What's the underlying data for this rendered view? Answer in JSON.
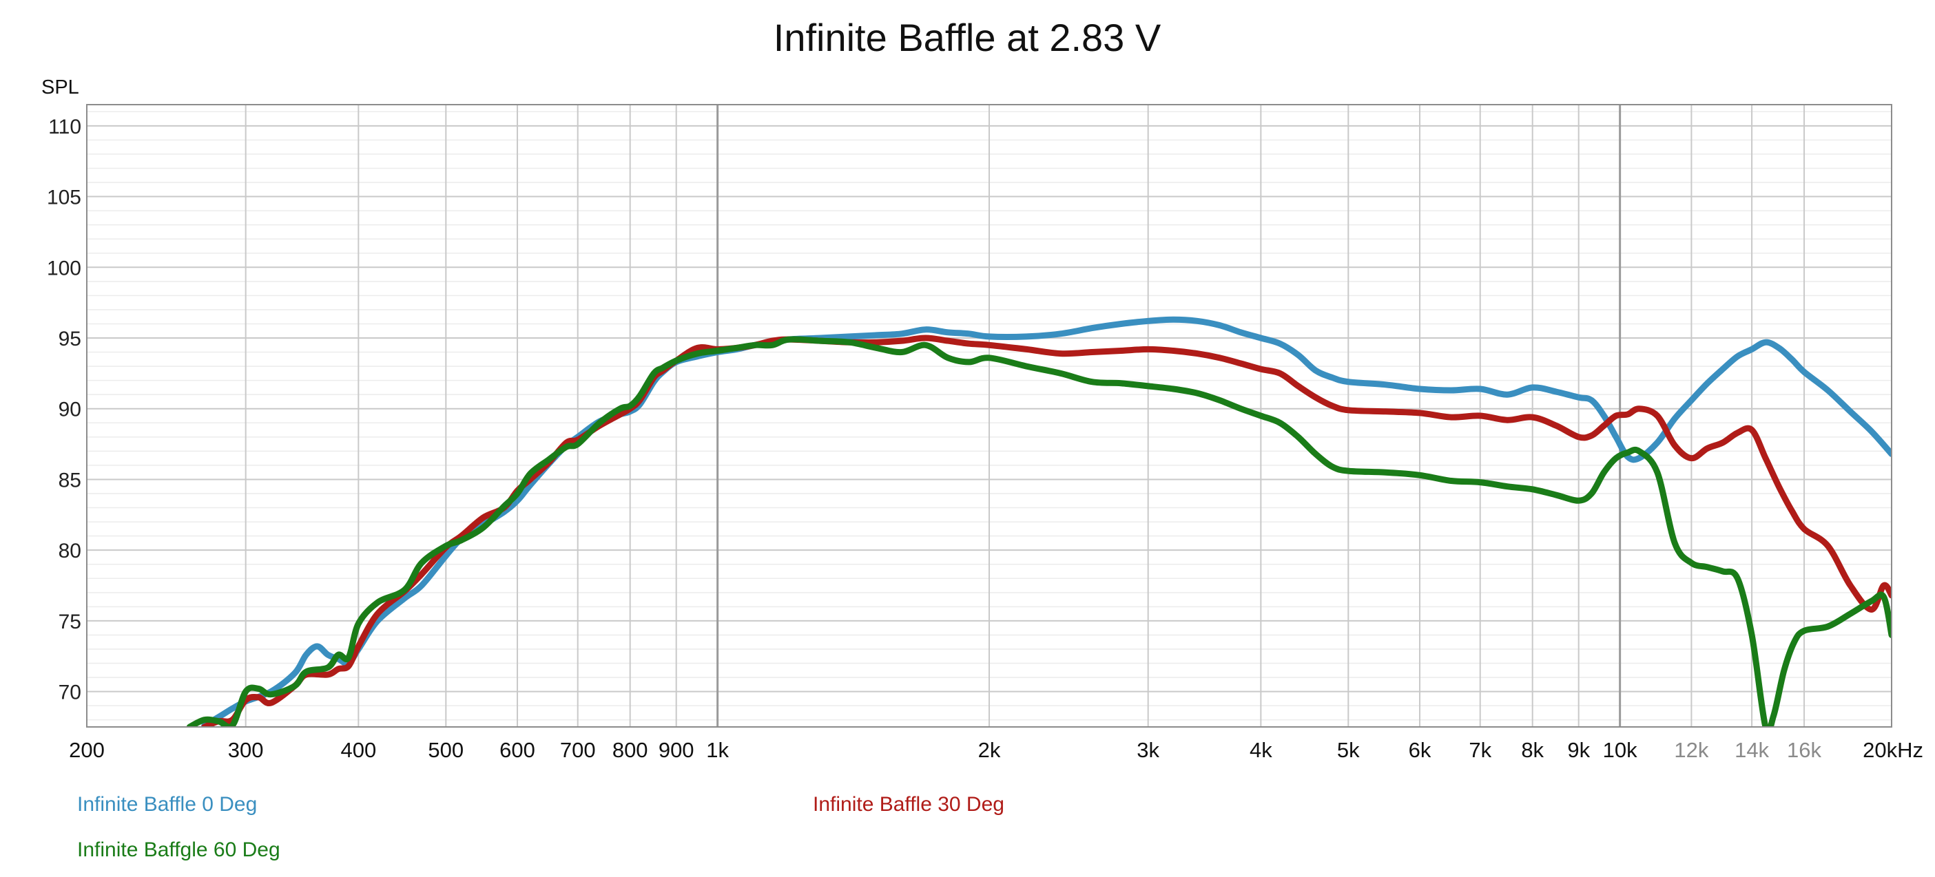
{
  "chart_data": {
    "type": "line",
    "title": "Infinite Baffle at 2.83 V",
    "ylabel": "SPL",
    "xlabel": "",
    "x_scale": "log",
    "xlim": [
      200,
      20000
    ],
    "ylim": [
      67.5,
      111.5
    ],
    "grid": true,
    "legend_placement": "bottom",
    "y_ticks": [
      "110",
      "105",
      "100",
      "95",
      "90",
      "85",
      "80",
      "75",
      "70"
    ],
    "x_ticks": [
      {
        "value": 200,
        "label": "200",
        "muted": false
      },
      {
        "value": 300,
        "label": "300",
        "muted": false
      },
      {
        "value": 400,
        "label": "400",
        "muted": false
      },
      {
        "value": 500,
        "label": "500",
        "muted": false
      },
      {
        "value": 600,
        "label": "600",
        "muted": false
      },
      {
        "value": 700,
        "label": "700",
        "muted": false
      },
      {
        "value": 800,
        "label": "800",
        "muted": false
      },
      {
        "value": 900,
        "label": "900",
        "muted": false
      },
      {
        "value": 1000,
        "label": "1k",
        "muted": false
      },
      {
        "value": 2000,
        "label": "2k",
        "muted": false
      },
      {
        "value": 3000,
        "label": "3k",
        "muted": false
      },
      {
        "value": 4000,
        "label": "4k",
        "muted": false
      },
      {
        "value": 5000,
        "label": "5k",
        "muted": false
      },
      {
        "value": 6000,
        "label": "6k",
        "muted": false
      },
      {
        "value": 7000,
        "label": "7k",
        "muted": false
      },
      {
        "value": 8000,
        "label": "8k",
        "muted": false
      },
      {
        "value": 9000,
        "label": "9k",
        "muted": false
      },
      {
        "value": 10000,
        "label": "10k",
        "muted": false
      },
      {
        "value": 12000,
        "label": "12k",
        "muted": true
      },
      {
        "value": 14000,
        "label": "14k",
        "muted": true
      },
      {
        "value": 16000,
        "label": "16k",
        "muted": true
      },
      {
        "value": 20000,
        "label": "20kHz",
        "muted": false
      }
    ],
    "series": [
      {
        "name": "Infinite Baffle 0 Deg",
        "color": "#3a8fc0",
        "points": [
          [
            270,
            67.6
          ],
          [
            280,
            68.2
          ],
          [
            290,
            68.8
          ],
          [
            300,
            69.3
          ],
          [
            320,
            70.0
          ],
          [
            340,
            71.3
          ],
          [
            350,
            72.6
          ],
          [
            360,
            73.2
          ],
          [
            370,
            72.6
          ],
          [
            380,
            72.3
          ],
          [
            390,
            72.0
          ],
          [
            400,
            73.0
          ],
          [
            420,
            75.0
          ],
          [
            450,
            76.6
          ],
          [
            470,
            77.5
          ],
          [
            500,
            79.6
          ],
          [
            520,
            80.8
          ],
          [
            550,
            81.8
          ],
          [
            580,
            82.7
          ],
          [
            600,
            83.5
          ],
          [
            620,
            84.6
          ],
          [
            650,
            86.1
          ],
          [
            680,
            87.4
          ],
          [
            700,
            88.0
          ],
          [
            740,
            89.1
          ],
          [
            780,
            89.6
          ],
          [
            800,
            89.8
          ],
          [
            820,
            90.3
          ],
          [
            850,
            91.9
          ],
          [
            870,
            92.6
          ],
          [
            900,
            93.3
          ],
          [
            950,
            93.7
          ],
          [
            1000,
            94.0
          ],
          [
            1050,
            94.2
          ],
          [
            1100,
            94.5
          ],
          [
            1150,
            94.7
          ],
          [
            1200,
            94.9
          ],
          [
            1300,
            95.0
          ],
          [
            1400,
            95.1
          ],
          [
            1500,
            95.2
          ],
          [
            1600,
            95.3
          ],
          [
            1700,
            95.6
          ],
          [
            1800,
            95.4
          ],
          [
            1900,
            95.3
          ],
          [
            2000,
            95.1
          ],
          [
            2200,
            95.1
          ],
          [
            2400,
            95.3
          ],
          [
            2600,
            95.7
          ],
          [
            2800,
            96.0
          ],
          [
            3000,
            96.2
          ],
          [
            3200,
            96.3
          ],
          [
            3400,
            96.2
          ],
          [
            3600,
            95.9
          ],
          [
            3800,
            95.4
          ],
          [
            4000,
            95.0
          ],
          [
            4200,
            94.6
          ],
          [
            4400,
            93.8
          ],
          [
            4600,
            92.7
          ],
          [
            4800,
            92.2
          ],
          [
            5000,
            91.9
          ],
          [
            5500,
            91.7
          ],
          [
            6000,
            91.4
          ],
          [
            6500,
            91.3
          ],
          [
            7000,
            91.4
          ],
          [
            7500,
            91.0
          ],
          [
            8000,
            91.5
          ],
          [
            8500,
            91.2
          ],
          [
            9000,
            90.8
          ],
          [
            9300,
            90.6
          ],
          [
            9600,
            89.5
          ],
          [
            9900,
            88.0
          ],
          [
            10200,
            86.6
          ],
          [
            10500,
            86.5
          ],
          [
            11000,
            87.6
          ],
          [
            11500,
            89.3
          ],
          [
            12000,
            90.6
          ],
          [
            12500,
            91.8
          ],
          [
            13000,
            92.8
          ],
          [
            13500,
            93.7
          ],
          [
            14000,
            94.2
          ],
          [
            14500,
            94.7
          ],
          [
            15000,
            94.3
          ],
          [
            15500,
            93.5
          ],
          [
            16000,
            92.6
          ],
          [
            17000,
            91.3
          ],
          [
            18000,
            89.8
          ],
          [
            19000,
            88.4
          ],
          [
            20000,
            86.8
          ]
        ]
      },
      {
        "name": "Infinite Baffle 30 Deg",
        "color": "#b01c18",
        "points": [
          [
            270,
            67.5
          ],
          [
            280,
            67.9
          ],
          [
            290,
            68.0
          ],
          [
            300,
            69.4
          ],
          [
            310,
            69.6
          ],
          [
            320,
            69.2
          ],
          [
            340,
            70.4
          ],
          [
            350,
            71.2
          ],
          [
            370,
            71.2
          ],
          [
            380,
            71.6
          ],
          [
            390,
            71.8
          ],
          [
            400,
            73.2
          ],
          [
            420,
            75.5
          ],
          [
            450,
            77.1
          ],
          [
            470,
            78.3
          ],
          [
            500,
            80.2
          ],
          [
            520,
            81.0
          ],
          [
            550,
            82.3
          ],
          [
            580,
            83.0
          ],
          [
            600,
            84.2
          ],
          [
            620,
            85.0
          ],
          [
            650,
            86.2
          ],
          [
            680,
            87.6
          ],
          [
            700,
            87.8
          ],
          [
            740,
            88.8
          ],
          [
            780,
            89.6
          ],
          [
            800,
            90.0
          ],
          [
            820,
            90.6
          ],
          [
            850,
            92.2
          ],
          [
            870,
            92.7
          ],
          [
            900,
            93.4
          ],
          [
            950,
            94.3
          ],
          [
            1000,
            94.2
          ],
          [
            1050,
            94.3
          ],
          [
            1100,
            94.5
          ],
          [
            1150,
            94.8
          ],
          [
            1200,
            94.9
          ],
          [
            1300,
            94.8
          ],
          [
            1400,
            94.7
          ],
          [
            1500,
            94.7
          ],
          [
            1600,
            94.8
          ],
          [
            1700,
            95.0
          ],
          [
            1800,
            94.8
          ],
          [
            1900,
            94.6
          ],
          [
            2000,
            94.5
          ],
          [
            2200,
            94.2
          ],
          [
            2400,
            93.9
          ],
          [
            2600,
            94.0
          ],
          [
            2800,
            94.1
          ],
          [
            3000,
            94.2
          ],
          [
            3200,
            94.1
          ],
          [
            3400,
            93.9
          ],
          [
            3600,
            93.6
          ],
          [
            3800,
            93.2
          ],
          [
            4000,
            92.8
          ],
          [
            4200,
            92.5
          ],
          [
            4400,
            91.6
          ],
          [
            4600,
            90.8
          ],
          [
            4800,
            90.2
          ],
          [
            5000,
            89.9
          ],
          [
            5500,
            89.8
          ],
          [
            6000,
            89.7
          ],
          [
            6500,
            89.4
          ],
          [
            7000,
            89.5
          ],
          [
            7500,
            89.2
          ],
          [
            8000,
            89.4
          ],
          [
            8500,
            88.8
          ],
          [
            9000,
            88.0
          ],
          [
            9300,
            88.1
          ],
          [
            9600,
            88.8
          ],
          [
            9900,
            89.5
          ],
          [
            10200,
            89.6
          ],
          [
            10500,
            90.0
          ],
          [
            11000,
            89.5
          ],
          [
            11500,
            87.4
          ],
          [
            12000,
            86.5
          ],
          [
            12500,
            87.2
          ],
          [
            13000,
            87.6
          ],
          [
            13500,
            88.3
          ],
          [
            14000,
            88.5
          ],
          [
            14500,
            86.5
          ],
          [
            15000,
            84.5
          ],
          [
            15500,
            82.8
          ],
          [
            16000,
            81.5
          ],
          [
            17000,
            80.3
          ],
          [
            18000,
            77.5
          ],
          [
            19000,
            75.8
          ],
          [
            19600,
            77.5
          ],
          [
            20000,
            76.8
          ]
        ]
      },
      {
        "name": "Infinite Baffgle 60 Deg",
        "color": "#1a7c18",
        "points": [
          [
            260,
            67.5
          ],
          [
            270,
            68.0
          ],
          [
            280,
            67.9
          ],
          [
            290,
            67.6
          ],
          [
            300,
            70.0
          ],
          [
            310,
            70.2
          ],
          [
            320,
            69.8
          ],
          [
            340,
            70.4
          ],
          [
            350,
            71.4
          ],
          [
            370,
            71.7
          ],
          [
            380,
            72.6
          ],
          [
            390,
            72.4
          ],
          [
            400,
            74.8
          ],
          [
            420,
            76.3
          ],
          [
            450,
            77.2
          ],
          [
            470,
            79.1
          ],
          [
            500,
            80.3
          ],
          [
            520,
            80.7
          ],
          [
            550,
            81.6
          ],
          [
            580,
            83.1
          ],
          [
            600,
            84.0
          ],
          [
            620,
            85.4
          ],
          [
            650,
            86.4
          ],
          [
            680,
            87.3
          ],
          [
            700,
            87.5
          ],
          [
            740,
            89.0
          ],
          [
            780,
            90.0
          ],
          [
            800,
            90.2
          ],
          [
            820,
            90.9
          ],
          [
            850,
            92.5
          ],
          [
            870,
            92.9
          ],
          [
            900,
            93.4
          ],
          [
            950,
            93.9
          ],
          [
            1000,
            94.1
          ],
          [
            1050,
            94.3
          ],
          [
            1100,
            94.5
          ],
          [
            1150,
            94.5
          ],
          [
            1200,
            94.9
          ],
          [
            1300,
            94.8
          ],
          [
            1400,
            94.7
          ],
          [
            1500,
            94.3
          ],
          [
            1600,
            94.0
          ],
          [
            1700,
            94.5
          ],
          [
            1800,
            93.6
          ],
          [
            1900,
            93.3
          ],
          [
            2000,
            93.6
          ],
          [
            2200,
            93.0
          ],
          [
            2400,
            92.5
          ],
          [
            2600,
            91.9
          ],
          [
            2800,
            91.8
          ],
          [
            3000,
            91.6
          ],
          [
            3200,
            91.4
          ],
          [
            3400,
            91.1
          ],
          [
            3600,
            90.6
          ],
          [
            3800,
            90.0
          ],
          [
            4000,
            89.5
          ],
          [
            4200,
            89.0
          ],
          [
            4400,
            88.0
          ],
          [
            4600,
            86.8
          ],
          [
            4800,
            85.9
          ],
          [
            5000,
            85.6
          ],
          [
            5500,
            85.5
          ],
          [
            6000,
            85.3
          ],
          [
            6500,
            84.9
          ],
          [
            7000,
            84.8
          ],
          [
            7500,
            84.5
          ],
          [
            8000,
            84.3
          ],
          [
            8500,
            83.9
          ],
          [
            9000,
            83.5
          ],
          [
            9300,
            84.0
          ],
          [
            9600,
            85.5
          ],
          [
            9900,
            86.5
          ],
          [
            10200,
            86.9
          ],
          [
            10500,
            87.0
          ],
          [
            11000,
            85.5
          ],
          [
            11500,
            80.5
          ],
          [
            12000,
            79.1
          ],
          [
            12500,
            78.8
          ],
          [
            13000,
            78.5
          ],
          [
            13500,
            78.0
          ],
          [
            14000,
            74.0
          ],
          [
            14500,
            67.5
          ],
          [
            14800,
            68.3
          ],
          [
            15200,
            71.5
          ],
          [
            15600,
            73.5
          ],
          [
            16000,
            74.3
          ],
          [
            17000,
            74.6
          ],
          [
            18000,
            75.5
          ],
          [
            19000,
            76.4
          ],
          [
            19600,
            76.7
          ],
          [
            20000,
            74.0
          ]
        ]
      }
    ]
  }
}
